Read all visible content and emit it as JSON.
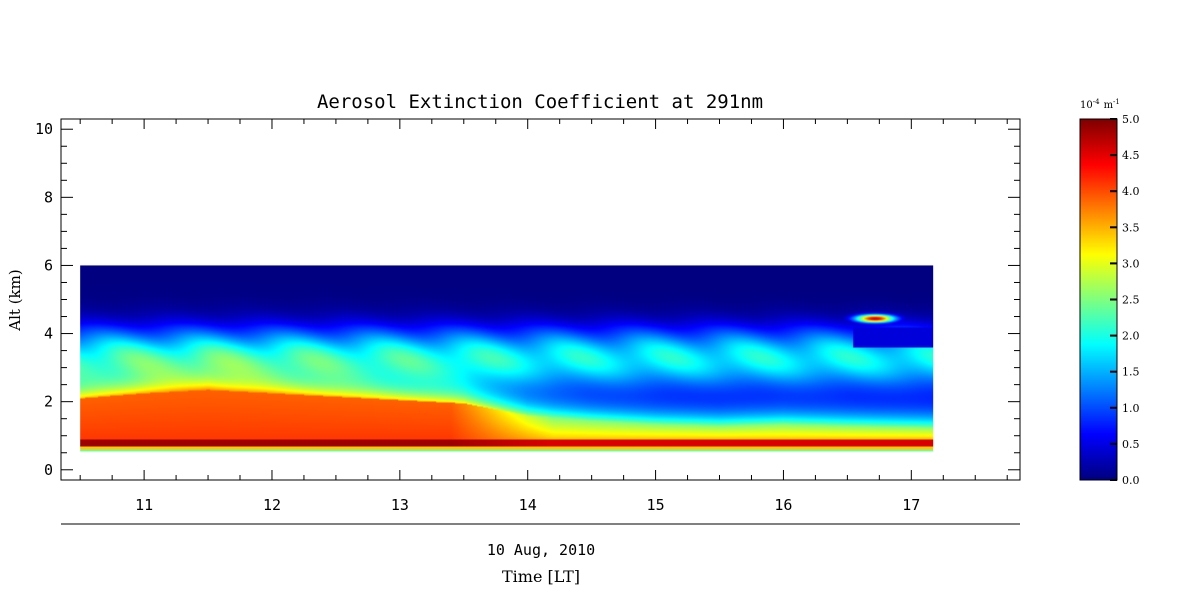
{
  "chart_data": {
    "type": "heatmap",
    "title": "Aerosol Extinction Coefficient at 291nm",
    "ylabel": "Alt (km)",
    "xlabel": "Time [LT]",
    "date_label": "10 Aug, 2010",
    "xlim": [
      10.35,
      17.85
    ],
    "ylim": [
      -0.3,
      10.3
    ],
    "x_ticks": [
      11,
      12,
      13,
      14,
      15,
      16,
      17
    ],
    "y_ticks": [
      0,
      2,
      4,
      6,
      8,
      10
    ],
    "data_extent": {
      "x": [
        10.5,
        17.17
      ],
      "y": [
        0.55,
        6.0
      ]
    },
    "colorbar": {
      "unit_base": "10",
      "unit_exp": "-4",
      "unit_name": "m",
      "unit_name_exp": "-1",
      "range": [
        0.0,
        5.0
      ],
      "ticks": [
        "0.0",
        "0.5",
        "1.0",
        "1.5",
        "2.0",
        "2.5",
        "3.0",
        "3.5",
        "4.0",
        "4.5",
        "5.0"
      ],
      "colormap": "jet"
    },
    "field_profile": {
      "altitudes_km": [
        0.55,
        0.65,
        0.75,
        0.85,
        1.0,
        1.4,
        1.8,
        2.2,
        2.6,
        3.0,
        3.5,
        4.0,
        4.5,
        5.0,
        6.0
      ],
      "times_lt": [
        10.5,
        11.0,
        11.5,
        12.0,
        12.5,
        13.0,
        13.5,
        14.0,
        14.5,
        15.0,
        15.5,
        16.0,
        16.5,
        17.17
      ],
      "boundary_layer_top_km": [
        2.1,
        2.25,
        2.35,
        2.25,
        2.15,
        2.05,
        1.95,
        1.6,
        1.45,
        1.35,
        1.3,
        1.35,
        1.3,
        1.25
      ],
      "plume": {
        "time": 16.72,
        "alt_km": 4.45,
        "peak": 4.6
      }
    }
  }
}
